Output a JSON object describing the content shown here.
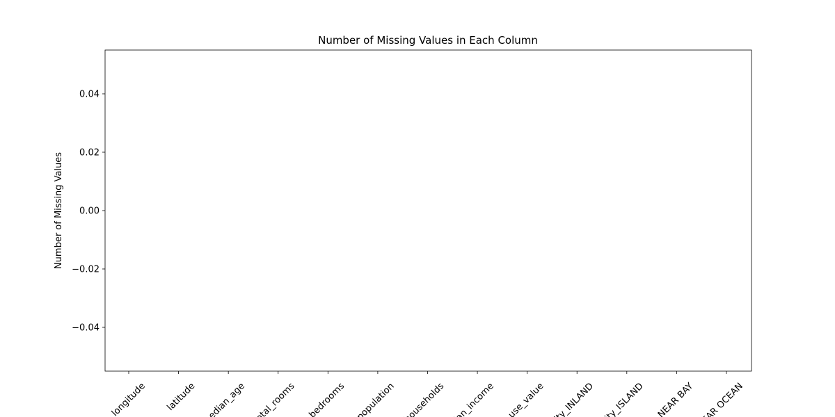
{
  "chart_data": {
    "type": "bar",
    "title": "Number of Missing Values in Each Column",
    "ylabel": "Number of Missing Values",
    "categories": [
      "longitude",
      "latitude",
      "edian_age",
      "otal_rooms",
      "bedrooms",
      "population",
      "households",
      "ian_income",
      "use_value",
      "ity_INLAND",
      "ity_ISLAND",
      "NEAR BAY",
      "EAR OCEAN"
    ],
    "values": [
      0,
      0,
      0,
      0,
      0,
      0,
      0,
      0,
      0,
      0,
      0,
      0,
      0
    ],
    "color": "#1f77b4",
    "ylim": [
      -0.055,
      0.055
    ],
    "yticks": [
      {
        "value": -0.04,
        "label": "−0.04"
      },
      {
        "value": -0.02,
        "label": "−0.02"
      },
      {
        "value": 0,
        "label": "0.00"
      },
      0.02,
      0.04
    ],
    "grid": false
  }
}
